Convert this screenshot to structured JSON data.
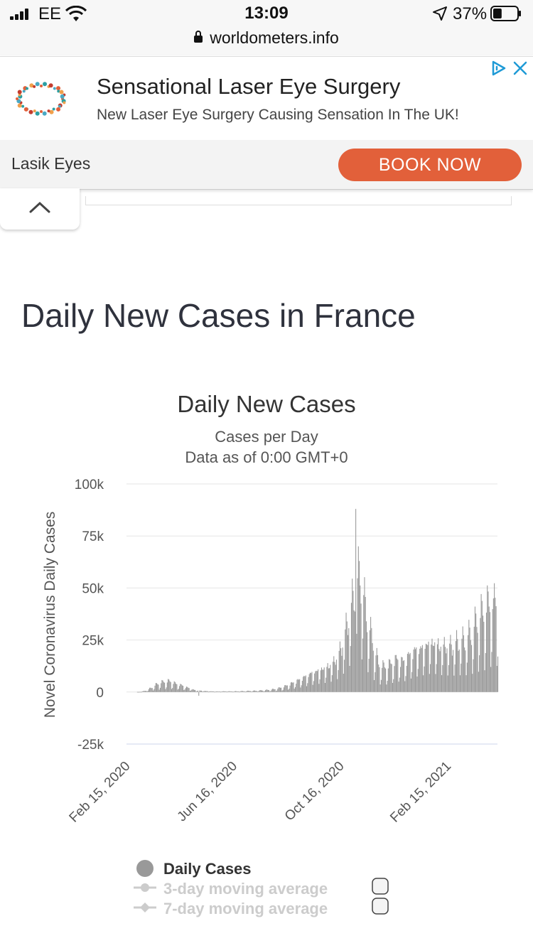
{
  "status_bar": {
    "carrier": "EE",
    "time": "13:09",
    "battery_percent": "37%",
    "battery_level": 0.37,
    "url": "worldometers.info"
  },
  "ad": {
    "title": "Sensational Laser Eye Surgery",
    "subtitle": "New Laser Eye Surgery Causing Sensation In The UK!",
    "brand": "Lasik Eyes",
    "cta_label": "BOOK NOW",
    "cta_color": "#e2603a",
    "icons": [
      "eye-logo-icon",
      "ad-choices-icon",
      "close-icon"
    ]
  },
  "page": {
    "heading": "Daily New Cases in France"
  },
  "chart_data": {
    "type": "bar",
    "title": "Daily New Cases",
    "subtitle_lines": [
      "Cases per Day",
      "Data as of 0:00 GMT+0"
    ],
    "ylabel": "Novel Coronavirus Daily Cases",
    "xlabel": "",
    "ylim": [
      -25000,
      100000
    ],
    "yticks": [
      100000,
      75000,
      50000,
      25000,
      0,
      -25000
    ],
    "ytick_labels": [
      "100k",
      "75k",
      "50k",
      "25k",
      "0",
      "-25k"
    ],
    "xtick_labels": [
      "Feb 15, 2020",
      "Jun 16, 2020",
      "Oct 16, 2020",
      "Feb 15, 2021"
    ],
    "grid": true,
    "bar_color": "#999999",
    "start_date": "2020-02-15",
    "end_date": "2021-04-13",
    "weekly_points": [
      [
        "2020-02-29",
        50
      ],
      [
        "2020-03-07",
        500
      ],
      [
        "2020-03-14",
        1800
      ],
      [
        "2020-03-21",
        3500
      ],
      [
        "2020-03-28",
        4300
      ],
      [
        "2020-04-04",
        4600
      ],
      [
        "2020-04-11",
        3500
      ],
      [
        "2020-04-18",
        2800
      ],
      [
        "2020-04-25",
        1800
      ],
      [
        "2020-05-02",
        900
      ],
      [
        "2020-05-09",
        600
      ],
      [
        "2020-05-16",
        400
      ],
      [
        "2020-05-23",
        300
      ],
      [
        "2020-05-30",
        250
      ],
      [
        "2020-06-06",
        350
      ],
      [
        "2020-06-13",
        300
      ],
      [
        "2020-06-20",
        350
      ],
      [
        "2020-06-27",
        400
      ],
      [
        "2020-07-04",
        500
      ],
      [
        "2020-07-11",
        550
      ],
      [
        "2020-07-18",
        700
      ],
      [
        "2020-07-25",
        900
      ],
      [
        "2020-08-01",
        1200
      ],
      [
        "2020-08-08",
        1800
      ],
      [
        "2020-08-15",
        2700
      ],
      [
        "2020-08-22",
        3900
      ],
      [
        "2020-08-29",
        5200
      ],
      [
        "2020-09-05",
        6700
      ],
      [
        "2020-09-12",
        8300
      ],
      [
        "2020-09-19",
        9500
      ],
      [
        "2020-09-26",
        10500
      ],
      [
        "2020-10-03",
        11800
      ],
      [
        "2020-10-10",
        14200
      ],
      [
        "2020-10-17",
        20000
      ],
      [
        "2020-10-24",
        31000
      ],
      [
        "2020-10-31",
        42000
      ],
      [
        "2020-11-07",
        52000
      ],
      [
        "2020-11-14",
        33000
      ],
      [
        "2020-11-21",
        22000
      ],
      [
        "2020-11-28",
        12000
      ],
      [
        "2020-12-05",
        10500
      ],
      [
        "2020-12-12",
        12000
      ],
      [
        "2020-12-19",
        14000
      ],
      [
        "2020-12-26",
        13000
      ],
      [
        "2021-01-02",
        16000
      ],
      [
        "2021-01-09",
        18500
      ],
      [
        "2021-01-16",
        19500
      ],
      [
        "2021-01-23",
        21500
      ],
      [
        "2021-01-30",
        22000
      ],
      [
        "2021-02-06",
        20500
      ],
      [
        "2021-02-13",
        20500
      ],
      [
        "2021-02-20",
        20500
      ],
      [
        "2021-02-27",
        22000
      ],
      [
        "2021-03-06",
        22500
      ],
      [
        "2021-03-13",
        25000
      ],
      [
        "2021-03-20",
        30000
      ],
      [
        "2021-03-27",
        34000
      ],
      [
        "2021-04-03",
        37000
      ],
      [
        "2021-04-10",
        40000
      ],
      [
        "2021-04-13",
        36000
      ]
    ],
    "spikes": [
      [
        "2020-11-02",
        88000
      ],
      [
        "2021-04-08",
        45000
      ]
    ],
    "negative_points": [
      [
        "2020-05-07",
        -1800
      ]
    ],
    "legend": [
      {
        "name": "Daily Cases",
        "color": "#999999",
        "enabled": true
      },
      {
        "name": "3-day moving average",
        "color": "#cccccc",
        "enabled": false
      },
      {
        "name": "7-day moving average",
        "color": "#cccccc",
        "enabled": false
      }
    ]
  }
}
